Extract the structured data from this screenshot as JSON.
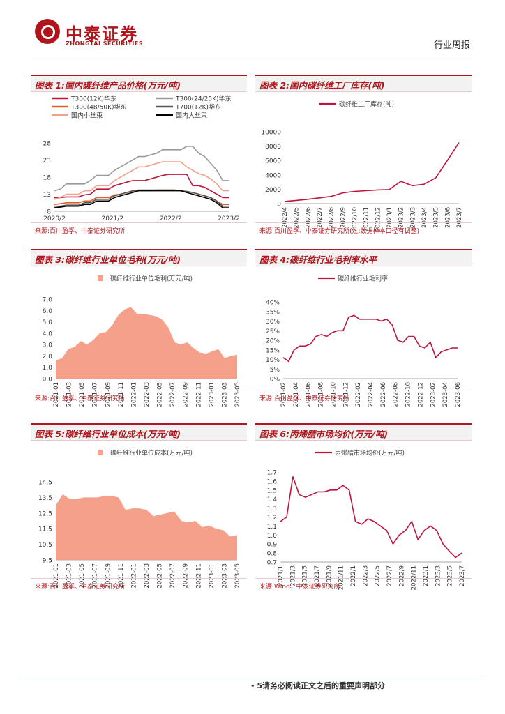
{
  "header": {
    "logo_cn": "中泰证券",
    "logo_en": "ZHONGTAI SECURITIES",
    "report_type": "行业周报"
  },
  "footer": {
    "text": "- 5请务必阅读正文之后的重要声明部分"
  },
  "colors": {
    "brand": "#b0151c",
    "series_red": "#c0143c",
    "series_salmon": "#f4a08a"
  },
  "panels": [
    {
      "title": "图表 1:国内碳纤维产品价格(万元/吨)",
      "source": "来源:百川盈孚、中泰证券研究所",
      "chart_data": {
        "type": "line",
        "ylim": [
          8,
          28
        ],
        "yticks": [
          "28",
          "23",
          "18",
          "13",
          "8"
        ],
        "xticks": [
          "2020/2",
          "2021/2",
          "2022/2",
          "2023/2"
        ],
        "series": [
          {
            "name": "T300(12K)华东",
            "color": "#c0143c",
            "values": [
              12,
              12,
              12.2,
              12.2,
              12.2,
              12.8,
              13,
              14.5,
              14.5,
              14.5,
              15.5,
              16,
              16.5,
              17,
              17,
              17,
              17.5,
              18,
              18.5,
              18.8,
              18.8,
              18.8,
              18.8,
              15.5,
              15.5,
              15,
              14,
              13,
              12,
              12
            ]
          },
          {
            "name": "T300(24/25K)华东",
            "color": "#9a9a9a",
            "values": [
              14,
              14.5,
              16,
              16,
              16,
              16,
              17,
              18.5,
              18.5,
              18.5,
              20,
              21,
              22,
              23,
              24,
              24,
              24.5,
              25,
              26,
              26,
              26,
              26,
              27,
              27,
              25,
              24,
              22,
              20,
              17,
              17
            ]
          },
          {
            "name": "T300(48/50K)华东",
            "color": "#e0602a",
            "values": [
              10,
              10.2,
              10.5,
              10.5,
              10.5,
              11,
              11,
              12,
              12,
              12,
              12.8,
              13,
              13.5,
              13.8,
              14,
              14,
              14,
              14.2,
              14.2,
              14.2,
              14.2,
              14,
              13.8,
              13.5,
              13,
              12.5,
              12,
              11,
              10,
              10
            ]
          },
          {
            "name": "T700(12K)华东",
            "color": "#555555",
            "values": [
              9.5,
              9.5,
              9.8,
              9.8,
              9.8,
              10.5,
              10.5,
              11.5,
              11.5,
              11.5,
              12.5,
              13,
              13.5,
              14,
              14.2,
              14.2,
              14.2,
              14.2,
              14.2,
              14.2,
              14.2,
              14,
              13.8,
              13.5,
              13,
              12.5,
              12,
              11,
              9.5,
              9.5
            ]
          },
          {
            "name": "国内小丝束",
            "color": "#f4a08a",
            "values": [
              11.5,
              12,
              13,
              13,
              13,
              14,
              14,
              15.5,
              15.5,
              15.5,
              17,
              18,
              19,
              20,
              21,
              21,
              21.5,
              22,
              22.5,
              22.5,
              22.5,
              22.5,
              21,
              20,
              19,
              18.5,
              17.5,
              16,
              14,
              14
            ]
          },
          {
            "name": "国内大丝束",
            "color": "#000000",
            "values": [
              9,
              9.2,
              9.5,
              9.5,
              9.5,
              10,
              10,
              11,
              11,
              11,
              12,
              12.5,
              13,
              13.5,
              14,
              14,
              14,
              14,
              14,
              14,
              14,
              14,
              13.5,
              13,
              12.5,
              12,
              11.5,
              10.5,
              9,
              9
            ]
          }
        ]
      }
    },
    {
      "title": "图表 2:国内碳纤维工厂库存(吨)",
      "source": "来源:百川盈孚、中泰证券研究所(注:数据样本口径有调整)",
      "chart_data": {
        "type": "line",
        "ylim": [
          0,
          10000
        ],
        "yticks": [
          "10000",
          "8000",
          "6000",
          "4000",
          "2000",
          "0"
        ],
        "xticks": [
          "2022/4",
          "2022/5",
          "2022/6",
          "2022/7",
          "2022/8",
          "2022/9",
          "2022/10",
          "2022/11",
          "2022/12",
          "2023/1",
          "2023/2",
          "2023/3",
          "2023/4",
          "2023/5",
          "2023/6",
          "2023/7"
        ],
        "series": [
          {
            "name": "碳纤维工厂库存(吨)",
            "color": "#c0143c",
            "values": [
              300,
              450,
              600,
              800,
              1000,
              1500,
              1700,
              1800,
              1900,
              1950,
              3100,
              2500,
              2700,
              3600,
              6000,
              8500
            ]
          }
        ]
      }
    },
    {
      "title": "图表 3:碳纤维行业单位毛利(万元/吨)",
      "source": "来源:百川盈孚、中泰证券研究所",
      "chart_data": {
        "type": "area",
        "ylim": [
          0,
          7
        ],
        "yticks": [
          "7.0",
          "6.0",
          "5.0",
          "4.0",
          "3.0",
          "2.0",
          "1.0",
          "0.0"
        ],
        "xticks": [
          "2021-01",
          "2021-03",
          "2021-05",
          "2021-07",
          "2021-09",
          "2021-11",
          "2022-01",
          "2022-03",
          "2022-05",
          "2022-07",
          "2022-09",
          "2022-11",
          "2023-01",
          "2023-03",
          "2023-05"
        ],
        "series": [
          {
            "name": "碳纤维行业单位毛利(万元/吨)",
            "color": "#f4a08a",
            "values": [
              1.6,
              1.8,
              2.6,
              2.8,
              3.3,
              3.0,
              3.4,
              4.0,
              4.1,
              4.7,
              5.6,
              6.1,
              6.3,
              5.7,
              5.7,
              5.6,
              5.5,
              5.2,
              4.5,
              3.2,
              3.0,
              3.2,
              2.7,
              2.3,
              2.2,
              2.4,
              2.6,
              1.8,
              2.0,
              2.1
            ]
          }
        ]
      }
    },
    {
      "title": "图表 4:碳纤维行业毛利率水平",
      "source": "来源:百川盈孚、中泰证券研究所",
      "chart_data": {
        "type": "line",
        "ylim": [
          0,
          40
        ],
        "yticks": [
          "40%",
          "35%",
          "30%",
          "25%",
          "20%",
          "15%",
          "10%",
          "5%",
          "0%"
        ],
        "xticks": [
          "2021-02",
          "2021-04",
          "2021-06",
          "2021-08",
          "2021-10",
          "2021-12",
          "2022-02",
          "2022-04",
          "2022-06",
          "2022-08",
          "2022-10",
          "2022-12",
          "2023-02",
          "2023-04",
          "2023-06"
        ],
        "series": [
          {
            "name": "碳纤维行业毛利率",
            "color": "#c0143c",
            "values": [
              11,
              9,
              15,
              17,
              17,
              18,
              22,
              23,
              22,
              24,
              25,
              25,
              32,
              33,
              31,
              31,
              31,
              31,
              30,
              31,
              28,
              20,
              19,
              22,
              22,
              17,
              16,
              19,
              11,
              14,
              15,
              16,
              16
            ]
          }
        ]
      }
    },
    {
      "title": "图表 5:碳纤维行业单位成本(万元/吨)",
      "source": "来源:百川盈孚、中泰证券研究所",
      "chart_data": {
        "type": "area",
        "ylim": [
          9.5,
          14.5
        ],
        "yticks": [
          "14.5",
          "13.5",
          "12.5",
          "11.5",
          "10.5",
          "9.5"
        ],
        "xticks": [
          "2021-01",
          "2021-03",
          "2021-05",
          "2021-07",
          "2021-09",
          "2021-11",
          "2022-01",
          "2022-03",
          "2022-05",
          "2022-07",
          "2022-09",
          "2022-11",
          "2023-01",
          "2023-03",
          "2023-05"
        ],
        "series": [
          {
            "name": "碳纤维行业单位成本(万元/吨)",
            "color": "#f4a08a",
            "values": [
              13.0,
              13.7,
              13.4,
              13.4,
              13.5,
              13.5,
              13.5,
              13.6,
              13.6,
              13.5,
              12.7,
              12.8,
              12.8,
              12.7,
              12.3,
              12.4,
              12.5,
              12.6,
              12.0,
              11.9,
              12.0,
              11.6,
              11.7,
              11.5,
              11.4,
              11.0,
              11.1
            ]
          }
        ]
      }
    },
    {
      "title": "图表 6:丙烯腈市场均价(万元/吨)",
      "source": "来源:Wind、中泰证券研究所",
      "chart_data": {
        "type": "line",
        "ylim": [
          0.7,
          1.7
        ],
        "yticks": [
          "1.7",
          "1.6",
          "1.5",
          "1.4",
          "1.3",
          "1.2",
          "1.1",
          "1.0",
          "0.9",
          "0.8",
          "0.7"
        ],
        "xticks": [
          "2021/1",
          "2021/3",
          "2021/5",
          "2021/7",
          "2021/9",
          "2021/11",
          "2022/1",
          "2022/3",
          "2022/5",
          "2022/7",
          "2022/9",
          "2022/11",
          "2023/1",
          "2023/3",
          "2023/5",
          "2023/7"
        ],
        "series": [
          {
            "name": "丙烯腈市场均价(万元/吨)",
            "color": "#c0143c",
            "values": [
              1.15,
              1.2,
              1.65,
              1.45,
              1.42,
              1.45,
              1.48,
              1.48,
              1.5,
              1.5,
              1.55,
              1.5,
              1.15,
              1.12,
              1.18,
              1.15,
              1.1,
              1.05,
              0.9,
              1.0,
              1.05,
              1.15,
              0.95,
              1.05,
              1.1,
              1.05,
              0.9,
              0.82,
              0.75,
              0.8
            ]
          }
        ]
      }
    }
  ]
}
